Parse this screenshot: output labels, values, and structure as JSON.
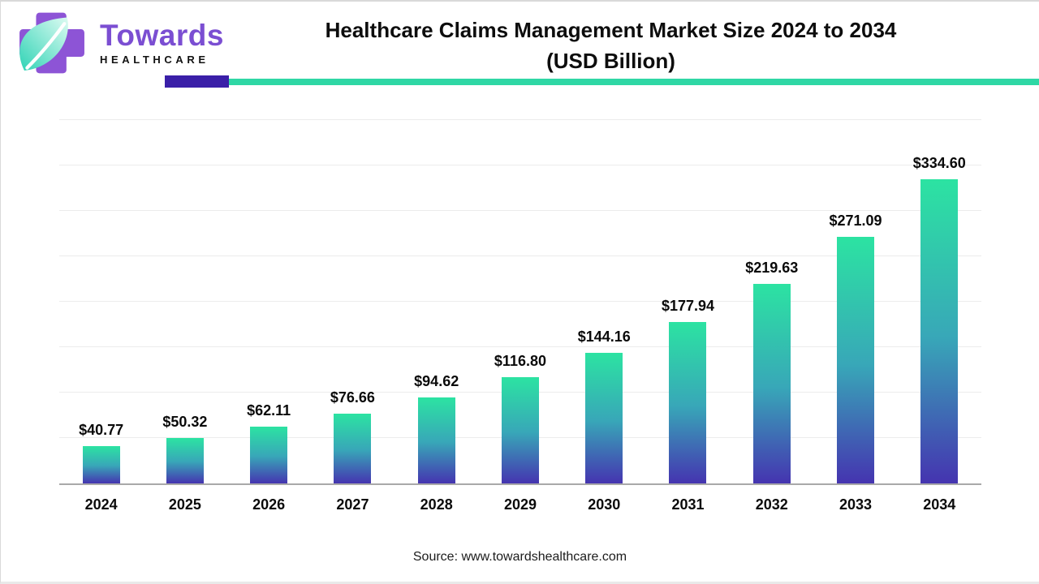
{
  "logo": {
    "brand_name": "Towards",
    "brand_subtitle": "HEALTHCARE",
    "icon": "medical-cross-leaf-icon"
  },
  "header": {
    "title_line1": "Healthcare Claims Management Market Size 2024 to 2034",
    "title_line2": "(USD Billion)"
  },
  "chart_data": {
    "type": "bar",
    "title": "Healthcare Claims Management Market Size 2024 to 2034 (USD Billion)",
    "categories": [
      "2024",
      "2025",
      "2026",
      "2027",
      "2028",
      "2029",
      "2030",
      "2031",
      "2032",
      "2033",
      "2034"
    ],
    "values": [
      40.77,
      50.32,
      62.11,
      76.66,
      94.62,
      116.8,
      144.16,
      177.94,
      219.63,
      271.09,
      334.6
    ],
    "value_labels": [
      "$40.77",
      "$50.32",
      "$62.11",
      "$76.66",
      "$94.62",
      "$116.80",
      "$144.16",
      "$177.94",
      "$219.63",
      "$271.09",
      "$334.60"
    ],
    "xlabel": "",
    "ylabel": "",
    "ylim": [
      0,
      400
    ],
    "gridline_interval": 50,
    "grid": true,
    "legend": "none",
    "bar_color_top": "#2ce3a2",
    "bar_color_mid": "#38a7b8",
    "bar_color_bottom": "#4534b0"
  },
  "footer": {
    "source_label": "Source: www.towardshealthcare.com"
  },
  "theme": {
    "accent_purple": "#3a1fa8",
    "accent_teal": "#2fd7a5",
    "logo_purple": "#8d54d6",
    "brand_text_purple": "#7b4ed2",
    "gridline_color": "#ececec",
    "axis_color": "#a9a9a9"
  }
}
